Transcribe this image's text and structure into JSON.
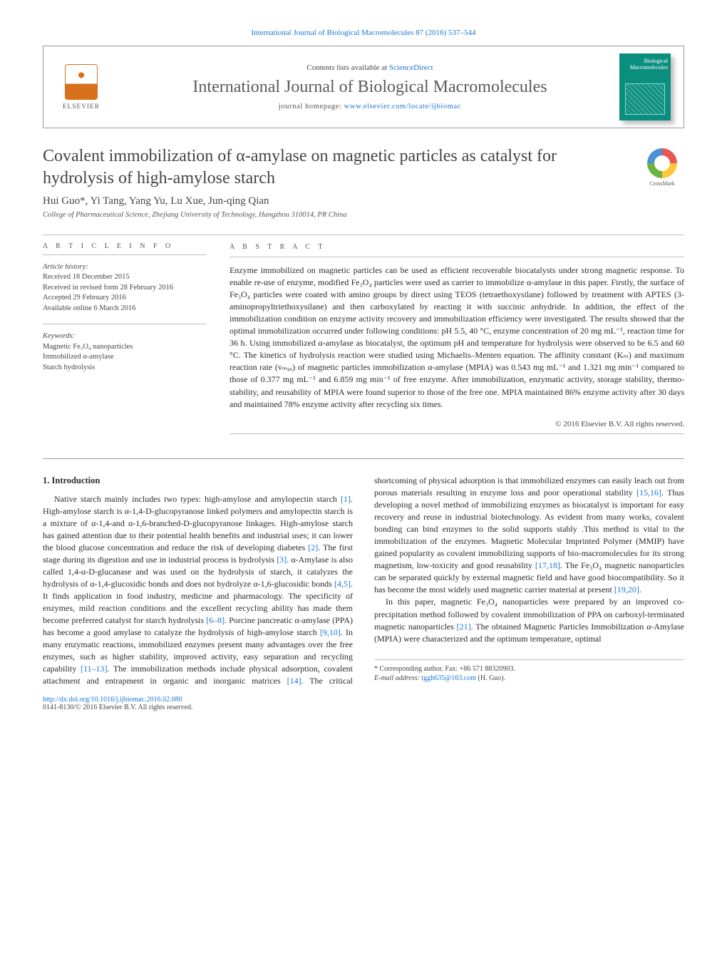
{
  "topLink": {
    "journal": "International Journal of Biological Macromolecules 87 (2016) 537–544"
  },
  "header": {
    "publisherName": "ELSEVIER",
    "contentsPrefix": "Contents lists available at ",
    "contentsLink": "ScienceDirect",
    "journalName": "International Journal of Biological Macromolecules",
    "homepagePrefix": "journal homepage: ",
    "homepageUrl": "www.elsevier.com/locate/ijbiomac",
    "coverLabel": "Biological\nMacromolecules"
  },
  "article": {
    "title": "Covalent immobilization of α-amylase on magnetic particles as catalyst for hydrolysis of high-amylose starch",
    "crossmark": "CrossMark",
    "authors": "Hui Guo*, Yi Tang, Yang Yu, Lu Xue, Jun-qing Qian",
    "affiliation": "College of Pharmaceutical Science, Zhejiang University of Technology, Hangzhou 310014, PR China"
  },
  "meta": {
    "infoHeading": "A R T I C L E   I N F O",
    "historyLabel": "Article history:",
    "history": [
      "Received 18 December 2015",
      "Received in revised form 28 February 2016",
      "Accepted 29 February 2016",
      "Available online 6 March 2016"
    ],
    "keywordsLabel": "Keywords:",
    "keywords": [
      "Magnetic Fe₃O₄ nanoparticles",
      "Immobilized α-amylase",
      "Starch hydrolysis"
    ]
  },
  "abstract": {
    "heading": "A B S T R A C T",
    "text": "Enzyme immobilized on magnetic particles can be used as efficient recoverable biocatalysts under strong magnetic response. To enable re-use of enzyme, modified Fe₃O₄ particles were used as carrier to immobilize α-amylase in this paper. Firstly, the surface of Fe₃O₄ particles were coated with amino groups by direct using TEOS (tetraethoxysilane) followed by treatment with APTES (3-aminopropyltriethoxysilane) and then carboxylated by reacting it with succinic anhydride. In addition, the effect of the immobilization condition on enzyme activity recovery and immobilization efficiency were investigated. The results showed that the optimal immobilization occurred under following conditions: pH 5.5, 40 °C, enzyme concentration of 20 mg mL⁻¹, reaction time for 36 h. Using immobilized α-amylase as biocatalyst, the optimum pH and temperature for hydrolysis were observed to be 6.5 and 60 °C. The kinetics of hydrolysis reaction were studied using Michaelis–Menten equation. The affinity constant (Kₘ) and maximum reaction rate (vₘₐₓ) of magnetic particles immobilization α-amylase (MPIA) was 0.543 mg mL⁻¹ and 1.321 mg min⁻¹ compared to those of 0.377 mg mL⁻¹ and 6.859 mg min⁻¹ of free enzyme. After immobilization, enzymatic activity, storage stability, thermo-stability, and reusability of MPIA were found superior to those of the free one. MPIA maintained 86% enzyme activity after 30 days and maintained 78% enzyme activity after recycling six times.",
    "copyright": "© 2016 Elsevier B.V. All rights reserved."
  },
  "body": {
    "introHeading": "1. Introduction",
    "p1a": "Native starch mainly includes two types: high-amylose and amylopectin starch ",
    "c1": "[1]",
    "p1b": ". High-amylose starch is α-1,4-D-glucopyranose linked polymers and amylopectin starch is a mixture of α-1,4-and α-1,6-branched-D-glucopyranose linkages. High-amylose starch has gained attention due to their potential health benefits and industrial uses; it can lower the blood glucose concentration and reduce the risk of developing diabetes ",
    "c2": "[2]",
    "p1c": ". The first stage during its digestion and use in industrial process is hydrolysis ",
    "c3": "[3]",
    "p1d": ". α-Amylase is also called 1,4-α-D-glucanase and was used on the hydrolysis of starch, it catalyzes the hydrolysis of α-1,4-glucosidic bonds and does not hydrolyze α-1,6-glucosidic bonds ",
    "c45": "[4,5]",
    "p1e": ". It finds application in food industry, medicine and pharmacology. The specificity of enzymes, mild reaction conditions and the excellent recycling ability has made them become preferred catalyst for starch hydrolysis ",
    "c68": "[6–8]",
    "p1f": ". Porcine pancreatic α-amylase (PPA) has become a good amylase to catalyze the hydrolysis of high-amylose starch ",
    "c910": "[9,10]",
    "p1g": ". In many enzymatic reactions, immobilized",
    "p2a": "enzymes present many advantages over the free enzymes, such as higher stability, improved activity, easy separation and recycling capability ",
    "c1113": "[11–13]",
    "p2b": ". The immobilization methods include physical adsorption, covalent attachment and entrapment in organic and inorganic matrices ",
    "c14": "[14]",
    "p2c": ". The critical shortcoming of physical adsorption is that immobilized enzymes can easily leach out from porous materials resulting in enzyme loss and poor operational stability ",
    "c1516": "[15,16]",
    "p2d": ". Thus developing a novel method of immobilizing enzymes as biocatalyst is important for easy recovery and reuse in industrial biotechnology. As evident from many works, covalent bonding can bind enzymes to the solid supports stably .This method is vital to the immobilization of the enzymes. Magnetic Molecular Imprinted Polymer (MMIP) have gained popularity as covalent immobilizing supports of bio-macromolecules for its strong magnetism, low-toxicity and good reusability ",
    "c1718": "[17,18]",
    "p2e": ". The Fe₃O₄ magnetic nanoparticles can be separated quickly by external magnetic field and have good biocompatibility. So it has become the most widely used magnetic carrier material at present ",
    "c1920": "[19,20]",
    "p2f": ".",
    "p3a": "In this paper, magnetic Fe₃O₄ nanoparticles were prepared by an improved co-precipitation method followed by covalent immobilization of PPA on carboxyl-terminated magnetic nanoparticles ",
    "c21": "[21]",
    "p3b": ". The obtained Magnetic Particles Immobilization α-Amylase (MPIA) were characterized and the optimum temperature, optimal"
  },
  "footnote": {
    "corrLabel": "* Corresponding author. Fax: +86 571 88320903.",
    "emailLabel": "E-mail address: ",
    "email": "tggh635@163.com",
    "emailSuffix": " (H. Guo)."
  },
  "doi": {
    "url": "http://dx.doi.org/10.1016/j.ijbiomac.2016.02.080",
    "issn": "0141-8130/© 2016 Elsevier B.V. All rights reserved."
  },
  "style": {
    "linkColor": "#1976d2",
    "textColor": "#2a2a2a",
    "mutedColor": "#555555",
    "borderColor": "#bfbfbf",
    "coverBg": "#0a8f7f",
    "elsevierOrange": "#d8711c",
    "bodyFontSize": 12,
    "titleFontSize": 24,
    "journalNameFontSize": 24
  }
}
